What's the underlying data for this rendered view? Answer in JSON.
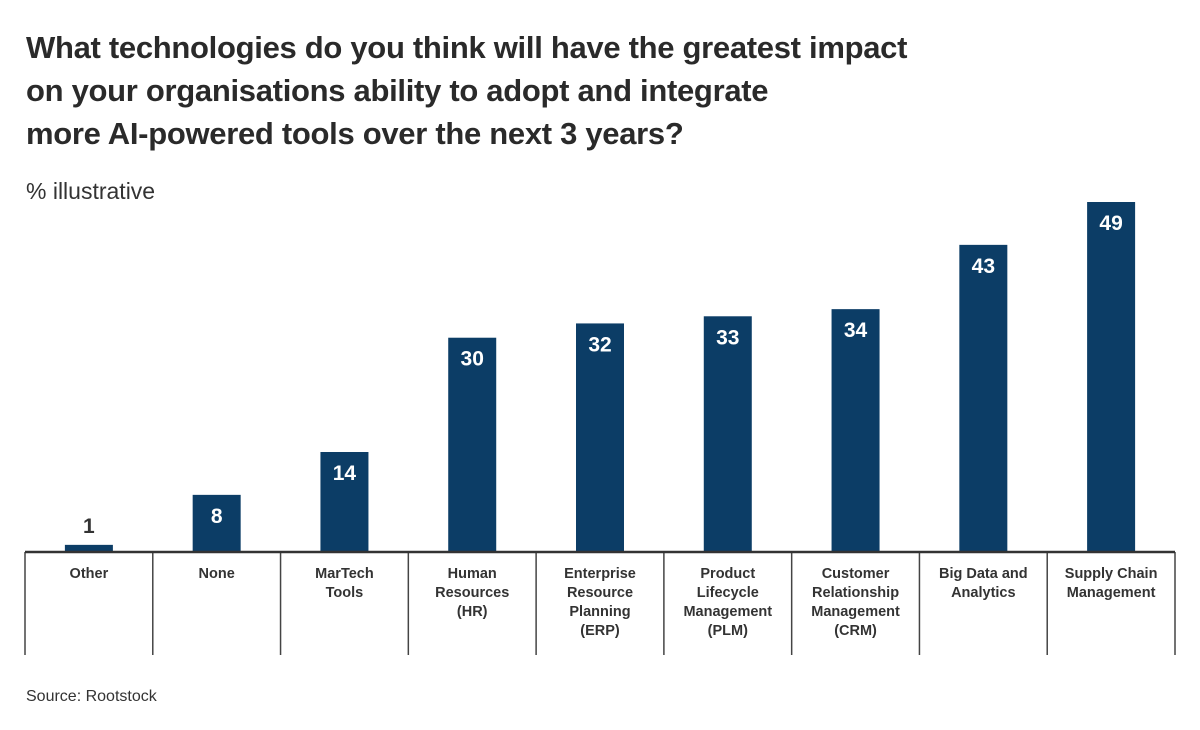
{
  "chart_data": {
    "type": "bar",
    "title": "What technologies do you think will have the greatest impact on your organisations ability to adopt and integrate more AI-powered tools over the next 3 years?",
    "title_lines": [
      "What technologies do you think will have the greatest impact",
      "on your organisations ability to adopt and integrate",
      "more AI-powered tools over the next 3 years?"
    ],
    "subtitle": "% illustrative",
    "source": "Source: Rootstock",
    "categories": [
      "Other",
      "None",
      "MarTech Tools",
      "Human Resources (HR)",
      "Enterprise Resource Planning (ERP)",
      "Product Lifecycle Management (PLM)",
      "Customer Relationship Management (CRM)",
      "Big Data and Analytics",
      "Supply Chain Management"
    ],
    "category_lines": [
      [
        "Other"
      ],
      [
        "None"
      ],
      [
        "MarTech",
        "Tools"
      ],
      [
        "Human",
        "Resources",
        "(HR)"
      ],
      [
        "Enterprise",
        "Resource",
        "Planning",
        "(ERP)"
      ],
      [
        "Product",
        "Lifecycle",
        "Management",
        "(PLM)"
      ],
      [
        "Customer",
        "Relationship",
        "Management",
        "(CRM)"
      ],
      [
        "Big Data and",
        "Analytics"
      ],
      [
        "Supply Chain",
        "Management"
      ]
    ],
    "values": [
      1,
      8,
      14,
      30,
      32,
      33,
      34,
      43,
      49
    ],
    "ylim": [
      0,
      49
    ],
    "grid": false,
    "legend": "none",
    "bar_color": "#0c3d66",
    "xlabel": "",
    "ylabel": ""
  }
}
